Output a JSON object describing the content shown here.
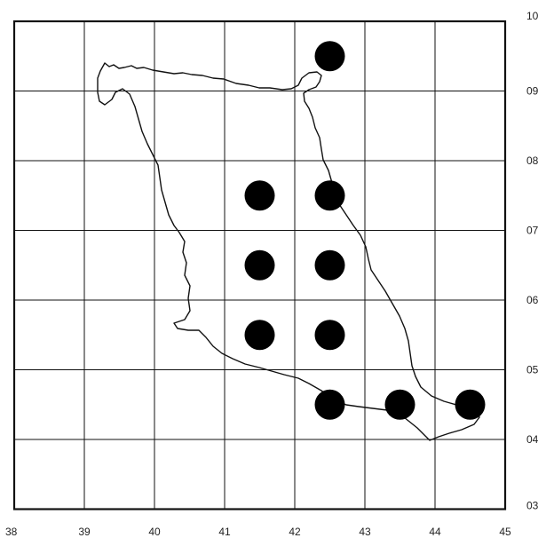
{
  "map": {
    "x_labels": [
      "38",
      "39",
      "40",
      "41",
      "42",
      "43",
      "44",
      "45"
    ],
    "y_labels": [
      "10",
      "09",
      "08",
      "07",
      "06",
      "05",
      "04",
      "03"
    ],
    "points": [
      {
        "col": "42",
        "row": "09"
      },
      {
        "col": "41",
        "row": "07"
      },
      {
        "col": "42",
        "row": "07"
      },
      {
        "col": "41",
        "row": "06"
      },
      {
        "col": "42",
        "row": "06"
      },
      {
        "col": "41",
        "row": "05"
      },
      {
        "col": "42",
        "row": "05"
      },
      {
        "col": "42",
        "row": "04"
      },
      {
        "col": "43",
        "row": "04"
      },
      {
        "col": "44",
        "row": "04"
      }
    ],
    "colors": {
      "grid": "#111111",
      "outline": "#111111",
      "dot": "#000000",
      "background": "#ffffff"
    }
  }
}
